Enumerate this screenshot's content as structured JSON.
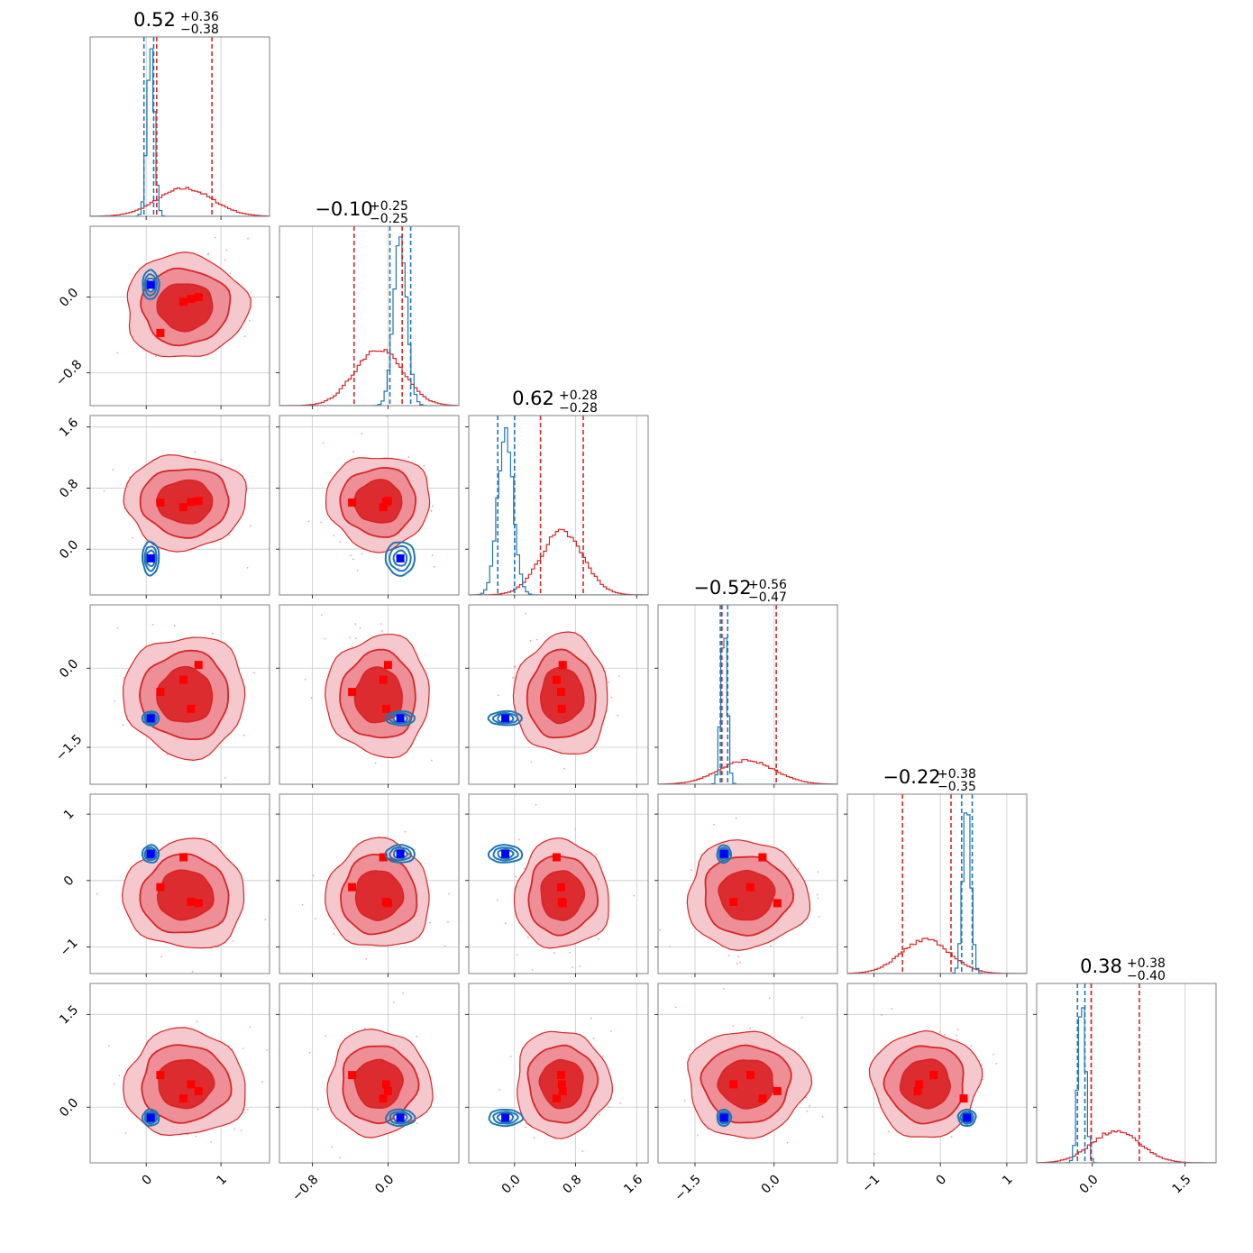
{
  "chart_data": {
    "type": "scatter",
    "title": "",
    "colors": {
      "wide": "#d62728",
      "narrow": "#1f77b4",
      "truth": "#0000ff",
      "markers": "#ff0000"
    },
    "params": [
      {
        "title": {
          "value": "0.52",
          "plus": "+0.36",
          "minus": "−0.38"
        },
        "range": [
          -0.75,
          1.65
        ],
        "ticks": [
          0,
          1
        ],
        "tick_labels": [
          "0",
          "1"
        ],
        "wide": {
          "mean": 0.52,
          "sd": 0.37,
          "q16": 0.14,
          "q84": 0.88
        },
        "narrow": {
          "mean": 0.06,
          "sd": 0.05,
          "q16": -0.03,
          "q84": 0.1
        },
        "truth": 0.06
      },
      {
        "title": {
          "value": "−0.10",
          "plus": "+0.25",
          "minus": "−0.25"
        },
        "range": [
          -1.15,
          0.75
        ],
        "ticks": [
          -0.8,
          0.0
        ],
        "tick_labels": [
          "−0.8",
          "0.0"
        ],
        "wide": {
          "mean": -0.1,
          "sd": 0.25,
          "q16": -0.36,
          "q84": 0.15
        },
        "narrow": {
          "mean": 0.13,
          "sd": 0.07,
          "q16": 0.02,
          "q84": 0.24
        },
        "truth": 0.13
      },
      {
        "title": {
          "value": "0.62",
          "plus": "+0.28",
          "minus": "−0.28"
        },
        "range": [
          -0.6,
          1.75
        ],
        "ticks": [
          0.0,
          0.8,
          1.6
        ],
        "tick_labels": [
          "0.0",
          "0.8",
          "1.6"
        ],
        "wide": {
          "mean": 0.62,
          "sd": 0.28,
          "q16": 0.34,
          "q84": 0.9
        },
        "narrow": {
          "mean": -0.12,
          "sd": 0.1,
          "q16": -0.22,
          "q84": 0.0
        },
        "truth": -0.12
      },
      {
        "title": {
          "value": "−0.52",
          "plus": "+0.56",
          "minus": "−0.47"
        },
        "range": [
          -2.2,
          1.2
        ],
        "ticks": [
          -1.5,
          0.0
        ],
        "tick_labels": [
          "−1.5",
          "0.0"
        ],
        "wide": {
          "mean": -0.52,
          "sd": 0.52,
          "q16": -0.99,
          "q84": 0.04
        },
        "narrow": {
          "mean": -0.95,
          "sd": 0.06,
          "q16": -1.02,
          "q84": -0.88
        },
        "truth": -0.95
      },
      {
        "title": {
          "value": "−0.22",
          "plus": "+0.38",
          "minus": "−0.35"
        },
        "range": [
          -1.4,
          1.3
        ],
        "ticks": [
          -1,
          0,
          1
        ],
        "tick_labels": [
          "−1",
          "0",
          "1"
        ],
        "wide": {
          "mean": -0.22,
          "sd": 0.37,
          "q16": -0.57,
          "q84": 0.16
        },
        "narrow": {
          "mean": 0.4,
          "sd": 0.06,
          "q16": 0.32,
          "q84": 0.48
        },
        "truth": 0.4
      },
      {
        "title": {
          "value": "0.38",
          "plus": "+0.38",
          "minus": "−0.40"
        },
        "range": [
          -0.9,
          2.0
        ],
        "ticks": [
          0.0,
          1.5
        ],
        "tick_labels": [
          "0.0",
          "1.5"
        ],
        "wide": {
          "mean": 0.38,
          "sd": 0.39,
          "q16": -0.02,
          "q84": 0.76
        },
        "narrow": {
          "mean": -0.17,
          "sd": 0.06,
          "q16": -0.24,
          "q84": -0.12
        },
        "truth": -0.17
      }
    ],
    "red_markers": [
      [
        0.19,
        -0.38,
        0.61,
        -0.45,
        -0.1,
        0.52
      ],
      [
        0.5,
        -0.05,
        0.55,
        -0.22,
        0.35,
        0.14
      ],
      [
        0.7,
        0.0,
        0.63,
        0.06,
        -0.34,
        0.26
      ],
      [
        0.6,
        -0.02,
        0.62,
        -0.77,
        -0.32,
        0.37
      ]
    ],
    "ylim_rows": {
      "1": [
        -1.15,
        0.75
      ],
      "2": [
        -0.6,
        1.75
      ],
      "3": [
        -2.2,
        1.2
      ],
      "4": [
        -1.4,
        1.3
      ],
      "5": [
        -0.9,
        2.0
      ]
    }
  }
}
